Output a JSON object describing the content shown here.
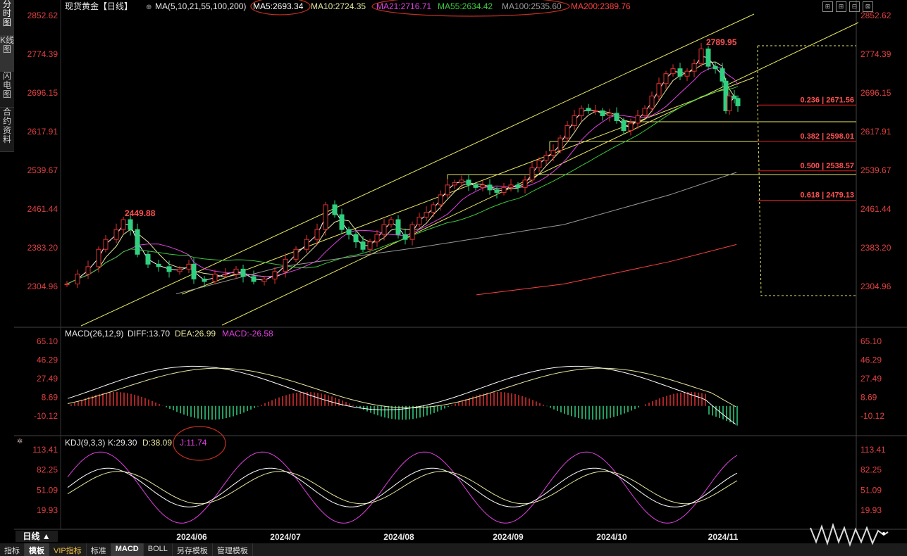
{
  "sidebar": [
    {
      "label": "分时图",
      "active": false
    },
    {
      "label": "K线图",
      "active": true
    },
    {
      "label": "闪电图",
      "active": false
    },
    {
      "label": "合约资料",
      "active": false
    }
  ],
  "main_panel": {
    "title": "现货黄金【日线】",
    "ma_params": "MA(5,10,21,55,100,200)",
    "ma_values": [
      {
        "label": "MA5:2693.34",
        "color": "#ffffff"
      },
      {
        "label": "MA10:2724.35",
        "color": "#e6e6a0"
      },
      {
        "label": "MA21:2716.71",
        "color": "#e040e0"
      },
      {
        "label": "MA55:2634.42",
        "color": "#3cc83c"
      },
      {
        "label": "MA100:2535.60",
        "color": "#9a9a9a"
      },
      {
        "label": "MA200:2389.76",
        "color": "#ff4040"
      }
    ],
    "y_ticks": [
      "2852.62",
      "2774.39",
      "2696.15",
      "2617.91",
      "2539.67",
      "2461.44",
      "2383.20",
      "2304.96"
    ],
    "annotations": [
      {
        "text": "2789.95",
        "price": 2789.95
      },
      {
        "text": "2449.88",
        "price": 2449.88
      }
    ],
    "fib_levels": [
      {
        "label": "0.236 | 2671.56",
        "price": 2671.56
      },
      {
        "label": "0.382 | 2598.01",
        "price": 2598.01
      },
      {
        "label": "0.500 | 2538.57",
        "price": 2538.57
      },
      {
        "label": "0.618 | 2479.13",
        "price": 2479.13
      }
    ]
  },
  "macd_panel": {
    "title": "MACD(26,12,9)",
    "diff": "DIFF:13.70",
    "dea": "DEA:26.99",
    "macd": "MACD:-26.58",
    "y_ticks": [
      "65.10",
      "46.29",
      "27.49",
      "8.69",
      "-10.12"
    ]
  },
  "kdj_panel": {
    "title": "KDJ(9,3,3)",
    "k": "K:29.30",
    "d": "D:38.09",
    "j": "J:11.74",
    "y_ticks": [
      "113.41",
      "82.25",
      "51.09",
      "19.93"
    ]
  },
  "x_labels": [
    "2024/06",
    "2024/07",
    "2024/08",
    "2024/09",
    "2024/10",
    "2024/11"
  ],
  "period_tag": "日线 ▲",
  "bottom_tabs": [
    {
      "label": "指标",
      "selected": false
    },
    {
      "label": "模板",
      "selected": true
    },
    {
      "label": "VIP指标",
      "selected": false
    },
    {
      "label": "标准",
      "selected": false
    },
    {
      "label": "MACD",
      "selected": true
    },
    {
      "label": "BOLL",
      "selected": false
    },
    {
      "label": "另存模板",
      "selected": false
    },
    {
      "label": "管理模板",
      "selected": false
    }
  ],
  "chart_data": {
    "type": "candlestick",
    "title": "现货黄金【日线】",
    "price_range": [
      2290,
      2855
    ],
    "key_points": [
      {
        "date": "2024/05",
        "close": 2330
      },
      {
        "date": "2024/05-high",
        "high": 2449.88
      },
      {
        "date": "2024/06",
        "close": 2320
      },
      {
        "date": "2024/07",
        "close": 2415
      },
      {
        "date": "2024/07-high",
        "high": 2483
      },
      {
        "date": "2024/08",
        "close": 2440
      },
      {
        "date": "2024/08-late",
        "close": 2520
      },
      {
        "date": "2024/09",
        "close": 2510
      },
      {
        "date": "2024/09-late",
        "close": 2665
      },
      {
        "date": "2024/10",
        "close": 2650
      },
      {
        "date": "2024/10-high",
        "high": 2789.95
      },
      {
        "date": "2024/11",
        "close": 2670
      }
    ],
    "ma_latest": {
      "MA5": 2693.34,
      "MA10": 2724.35,
      "MA21": 2716.71,
      "MA55": 2634.42,
      "MA100": 2535.6,
      "MA200": 2389.76
    },
    "macd_latest": {
      "DIFF": 13.7,
      "DEA": 26.99,
      "MACD": -26.58
    },
    "kdj_latest": {
      "K": 29.3,
      "D": 38.09,
      "J": 11.74
    },
    "fib": [
      0.236,
      0.382,
      0.5,
      0.618
    ]
  }
}
